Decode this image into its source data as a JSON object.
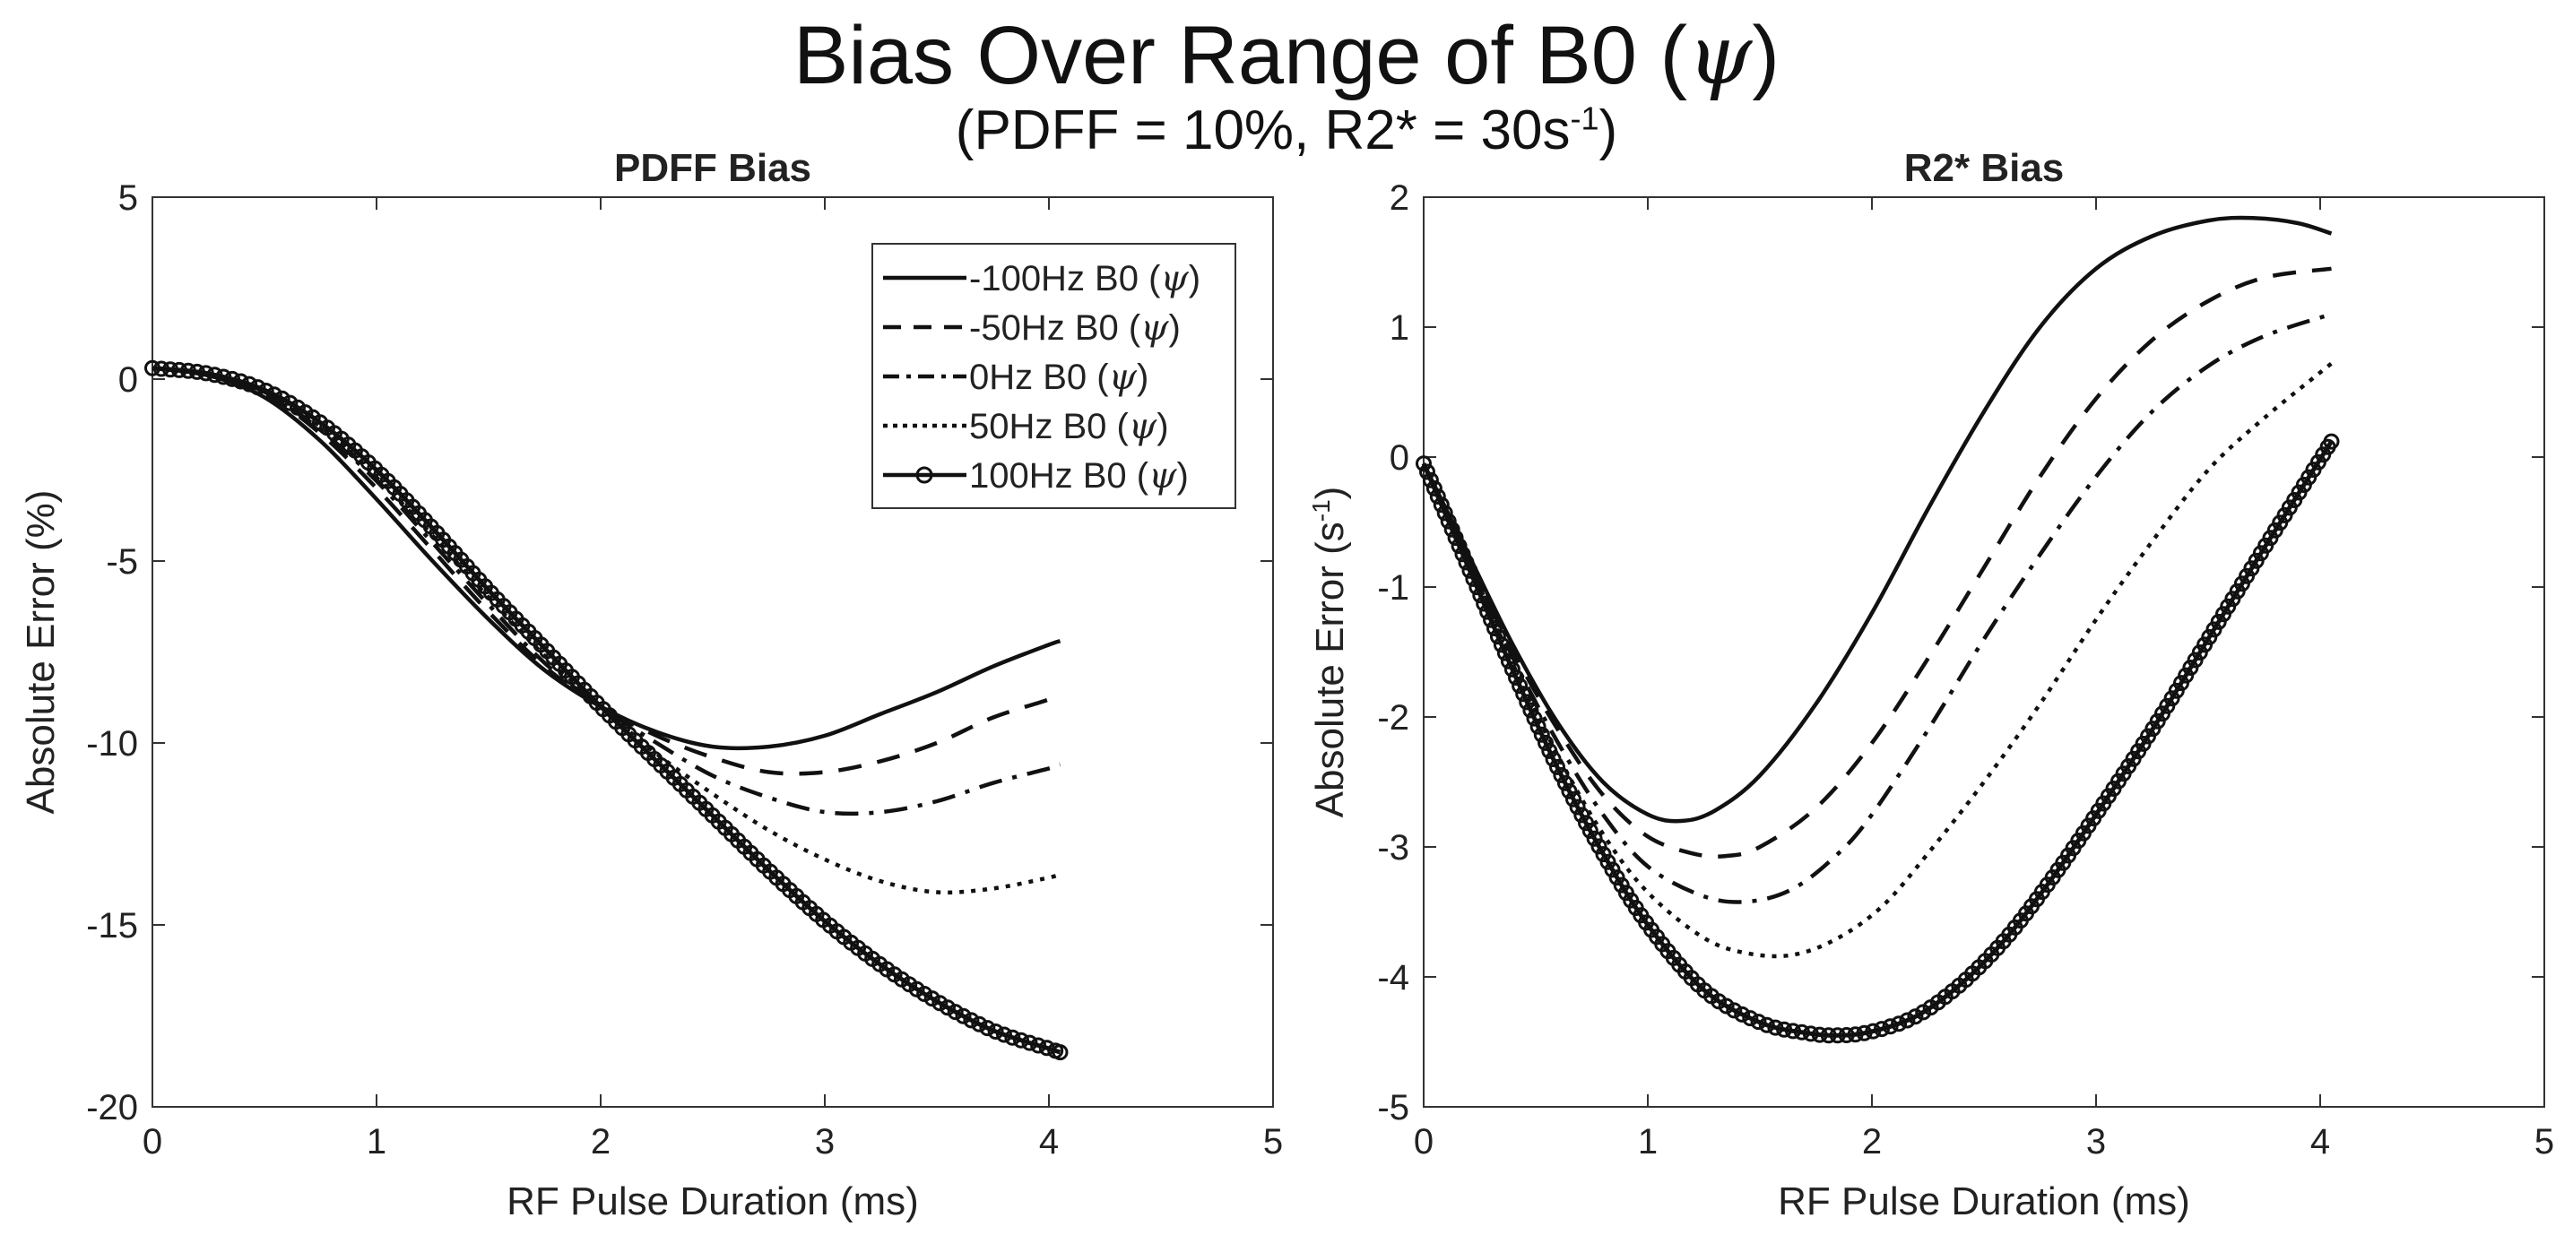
{
  "figure": {
    "title_text": "Bias Over Range of B0 (",
    "title_symbol": "ψ",
    "title_close": ")",
    "subtitle_prefix": "(PDFF = 10%, R2* = 30s",
    "subtitle_sup": "-1",
    "subtitle_suffix": ")"
  },
  "chart_data": [
    {
      "type": "line",
      "title": "PDFF Bias",
      "xlabel": "RF Pulse Duration (ms)",
      "ylabel": "Absolute Error (%)",
      "xlim": [
        0,
        5
      ],
      "ylim": [
        -20,
        5
      ],
      "xticks": [
        "0",
        "1",
        "2",
        "3",
        "4",
        "5"
      ],
      "yticks": [
        "5",
        "0",
        "-5",
        "-10",
        "-15",
        "-20"
      ],
      "legend_position": "top-right",
      "series": [
        {
          "name": "-100Hz B0 (ψ)",
          "style": "solid",
          "x": [
            0,
            0.25,
            0.5,
            0.75,
            1,
            1.25,
            1.5,
            1.75,
            2,
            2.25,
            2.5,
            2.75,
            3,
            3.25,
            3.5,
            3.75,
            4,
            4.05
          ],
          "y": [
            0.3,
            0.1,
            -0.5,
            -1.7,
            -3.3,
            -5.0,
            -6.6,
            -8.0,
            -9.0,
            -9.7,
            -10.1,
            -10.1,
            -9.8,
            -9.2,
            -8.6,
            -7.9,
            -7.3,
            -7.2
          ]
        },
        {
          "name": "-50Hz B0 (ψ)",
          "style": "dashed",
          "x": [
            0,
            0.25,
            0.5,
            0.75,
            1,
            1.25,
            1.5,
            1.75,
            2,
            2.25,
            2.5,
            2.75,
            3,
            3.25,
            3.5,
            3.75,
            4,
            4.05
          ],
          "y": [
            0.3,
            0.1,
            -0.4,
            -1.5,
            -3.0,
            -4.7,
            -6.4,
            -7.9,
            -9.0,
            -9.8,
            -10.4,
            -10.8,
            -10.8,
            -10.5,
            -10.0,
            -9.3,
            -8.8,
            -8.6
          ]
        },
        {
          "name": "0Hz B0 (ψ)",
          "style": "dashdot",
          "x": [
            0,
            0.25,
            0.5,
            0.75,
            1,
            1.25,
            1.5,
            1.75,
            2,
            2.25,
            2.5,
            2.75,
            3,
            3.25,
            3.5,
            3.75,
            4,
            4.05
          ],
          "y": [
            0.3,
            0.15,
            -0.35,
            -1.4,
            -2.8,
            -4.5,
            -6.2,
            -7.8,
            -9.0,
            -10.0,
            -10.9,
            -11.5,
            -11.9,
            -11.9,
            -11.6,
            -11.1,
            -10.7,
            -10.6
          ]
        },
        {
          "name": "50Hz B0 (ψ)",
          "style": "dotted",
          "x": [
            0,
            0.25,
            0.5,
            0.75,
            1,
            1.25,
            1.5,
            1.75,
            2,
            2.25,
            2.5,
            2.75,
            3,
            3.25,
            3.5,
            3.75,
            4,
            4.05
          ],
          "y": [
            0.3,
            0.15,
            -0.3,
            -1.3,
            -2.7,
            -4.3,
            -6.0,
            -7.6,
            -9.0,
            -10.3,
            -11.4,
            -12.4,
            -13.2,
            -13.8,
            -14.1,
            -14.0,
            -13.7,
            -13.6
          ]
        },
        {
          "name": "100Hz B0 (ψ)",
          "style": "solid-markers",
          "x": [
            0,
            0.25,
            0.5,
            0.75,
            1,
            1.25,
            1.5,
            1.75,
            2,
            2.25,
            2.5,
            2.75,
            3,
            3.25,
            3.5,
            3.75,
            4,
            4.05
          ],
          "y": [
            0.3,
            0.15,
            -0.3,
            -1.2,
            -2.5,
            -4.1,
            -5.8,
            -7.4,
            -9.0,
            -10.5,
            -12.0,
            -13.5,
            -14.9,
            -16.1,
            -17.1,
            -17.9,
            -18.4,
            -18.5
          ]
        }
      ]
    },
    {
      "type": "line",
      "title": "R2* Bias",
      "xlabel": "RF Pulse Duration (ms)",
      "ylabel": "Absolute Error (s",
      "ylabel_sup": "-1",
      "ylabel_suffix": ")",
      "xlim": [
        0,
        5
      ],
      "ylim": [
        -5,
        2
      ],
      "xticks": [
        "0",
        "1",
        "2",
        "3",
        "4",
        "5"
      ],
      "yticks": [
        "2",
        "1",
        "0",
        "-1",
        "-2",
        "-3",
        "-4",
        "-5"
      ],
      "series": [
        {
          "name": "-100Hz B0 (ψ)",
          "style": "solid",
          "x": [
            0,
            0.2,
            0.4,
            0.6,
            0.8,
            1.0,
            1.15,
            1.3,
            1.5,
            1.75,
            2,
            2.25,
            2.5,
            2.75,
            3,
            3.25,
            3.5,
            3.7,
            3.9,
            4.05
          ],
          "y": [
            -0.05,
            -0.75,
            -1.45,
            -2.05,
            -2.5,
            -2.75,
            -2.8,
            -2.72,
            -2.45,
            -1.9,
            -1.2,
            -0.4,
            0.35,
            1.0,
            1.45,
            1.7,
            1.82,
            1.84,
            1.8,
            1.72
          ]
        },
        {
          "name": "-50Hz B0 (ψ)",
          "style": "dashed",
          "x": [
            0,
            0.2,
            0.4,
            0.6,
            0.8,
            1.0,
            1.2,
            1.35,
            1.5,
            1.75,
            2,
            2.25,
            2.5,
            2.75,
            3,
            3.25,
            3.5,
            3.75,
            4.05
          ],
          "y": [
            -0.05,
            -0.8,
            -1.5,
            -2.1,
            -2.6,
            -2.92,
            -3.05,
            -3.07,
            -3.0,
            -2.7,
            -2.2,
            -1.55,
            -0.85,
            -0.15,
            0.45,
            0.9,
            1.2,
            1.38,
            1.45
          ]
        },
        {
          "name": "0Hz B0 (ψ)",
          "style": "dashdot",
          "x": [
            0,
            0.2,
            0.4,
            0.6,
            0.8,
            1.0,
            1.25,
            1.45,
            1.65,
            1.85,
            2,
            2.25,
            2.5,
            2.75,
            3,
            3.25,
            3.5,
            3.75,
            4.05
          ],
          "y": [
            -0.05,
            -0.8,
            -1.55,
            -2.2,
            -2.75,
            -3.15,
            -3.38,
            -3.42,
            -3.32,
            -3.05,
            -2.75,
            -2.1,
            -1.4,
            -0.75,
            -0.15,
            0.35,
            0.7,
            0.93,
            1.1
          ]
        },
        {
          "name": "50Hz B0 (ψ)",
          "style": "dotted",
          "x": [
            0,
            0.2,
            0.4,
            0.6,
            0.8,
            1.0,
            1.25,
            1.45,
            1.65,
            1.85,
            2.05,
            2.25,
            2.5,
            2.75,
            3,
            3.25,
            3.5,
            3.75,
            4.05
          ],
          "y": [
            -0.05,
            -0.8,
            -1.6,
            -2.3,
            -2.9,
            -3.35,
            -3.7,
            -3.82,
            -3.83,
            -3.7,
            -3.45,
            -3.05,
            -2.5,
            -1.9,
            -1.25,
            -0.65,
            -0.1,
            0.3,
            0.72
          ]
        },
        {
          "name": "100Hz B0 (ψ)",
          "style": "solid-markers",
          "x": [
            0,
            0.2,
            0.4,
            0.6,
            0.8,
            1.0,
            1.25,
            1.5,
            1.7,
            1.85,
            2.0,
            2.2,
            2.4,
            2.6,
            2.8,
            3.0,
            3.25,
            3.5,
            3.75,
            4.05
          ],
          "y": [
            -0.05,
            -0.85,
            -1.65,
            -2.4,
            -3.05,
            -3.6,
            -4.1,
            -4.35,
            -4.43,
            -4.45,
            -4.42,
            -4.3,
            -4.05,
            -3.7,
            -3.25,
            -2.75,
            -2.1,
            -1.4,
            -0.7,
            0.12
          ]
        }
      ]
    }
  ]
}
